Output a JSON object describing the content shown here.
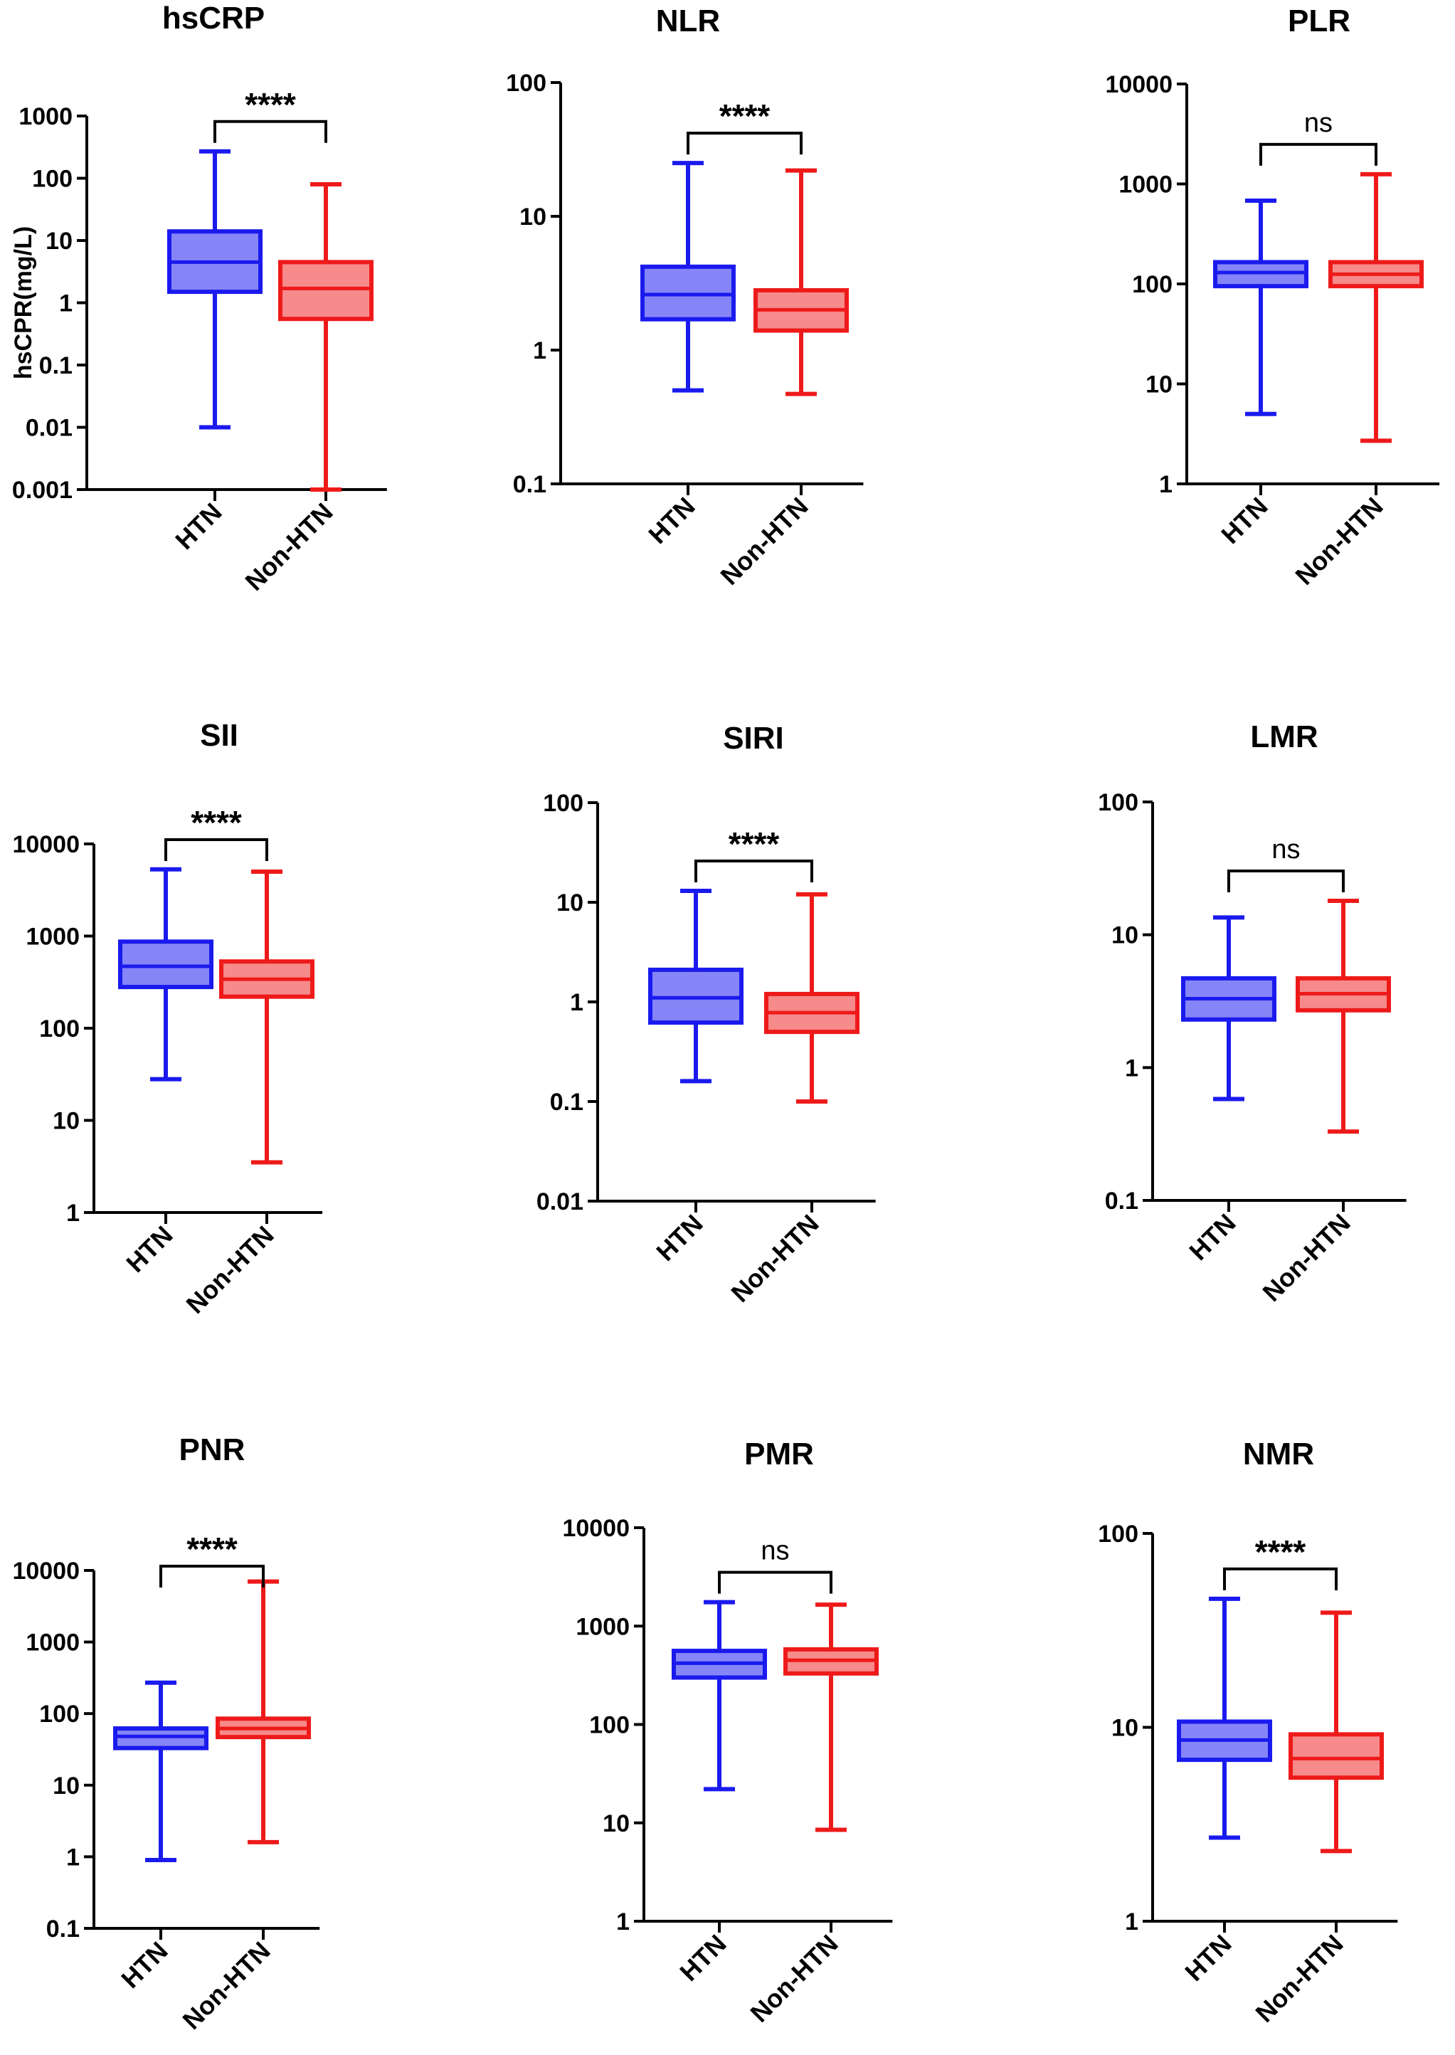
{
  "chart_data": [
    {
      "type": "boxplot",
      "title": "hsCRP",
      "ylabel": "hsCPR(mg/L)",
      "yscale": "log",
      "ylim": [
        0.001,
        1000
      ],
      "yticks": [
        "0.001",
        "0.01",
        "0.1",
        "1",
        "10",
        "100",
        "1000"
      ],
      "categories": [
        "HTN",
        "Non-HTN"
      ],
      "boxes": [
        {
          "name": "HTN",
          "min": 0.01,
          "q1": 1.5,
          "median": 4.5,
          "q3": 14,
          "max": 270,
          "color": "#1a1aee"
        },
        {
          "name": "Non-HTN",
          "min": 0.001,
          "q1": 0.55,
          "median": 1.7,
          "q3": 4.5,
          "max": 80,
          "color": "#ee1a1a"
        }
      ],
      "significance": "****"
    },
    {
      "type": "boxplot",
      "title": "NLR",
      "ylabel": "",
      "yscale": "log",
      "ylim": [
        0.1,
        100
      ],
      "yticks": [
        "0.1",
        "1",
        "10",
        "100"
      ],
      "categories": [
        "HTN",
        "Non-HTN"
      ],
      "boxes": [
        {
          "name": "HTN",
          "min": 0.5,
          "q1": 1.7,
          "median": 2.6,
          "q3": 4.2,
          "max": 25,
          "color": "#1a1aee"
        },
        {
          "name": "Non-HTN",
          "min": 0.47,
          "q1": 1.4,
          "median": 2.0,
          "q3": 2.8,
          "max": 22,
          "color": "#ee1a1a"
        }
      ],
      "significance": "****"
    },
    {
      "type": "boxplot",
      "title": "PLR",
      "ylabel": "",
      "yscale": "log",
      "ylim": [
        1,
        10000
      ],
      "yticks": [
        "1",
        "10",
        "100",
        "1000",
        "10000"
      ],
      "categories": [
        "HTN",
        "Non-HTN"
      ],
      "boxes": [
        {
          "name": "HTN",
          "min": 5,
          "q1": 95,
          "median": 130,
          "q3": 165,
          "max": 680,
          "color": "#1a1aee"
        },
        {
          "name": "Non-HTN",
          "min": 2.7,
          "q1": 95,
          "median": 125,
          "q3": 165,
          "max": 1250,
          "color": "#ee1a1a"
        }
      ],
      "significance": "ns"
    },
    {
      "type": "boxplot",
      "title": "SII",
      "ylabel": "",
      "yscale": "log",
      "ylim": [
        1,
        10000
      ],
      "yticks": [
        "1",
        "10",
        "100",
        "1000",
        "10000"
      ],
      "categories": [
        "HTN",
        "Non-HTN"
      ],
      "boxes": [
        {
          "name": "HTN",
          "min": 28,
          "q1": 280,
          "median": 470,
          "q3": 870,
          "max": 5300,
          "color": "#1a1aee"
        },
        {
          "name": "Non-HTN",
          "min": 3.5,
          "q1": 220,
          "median": 340,
          "q3": 530,
          "max": 5000,
          "color": "#ee1a1a"
        }
      ],
      "significance": "****"
    },
    {
      "type": "boxplot",
      "title": "SIRI",
      "ylabel": "",
      "yscale": "log",
      "ylim": [
        0.01,
        100
      ],
      "yticks": [
        "0.01",
        "0.1",
        "1",
        "10",
        "100"
      ],
      "categories": [
        "HTN",
        "Non-HTN"
      ],
      "boxes": [
        {
          "name": "HTN",
          "min": 0.16,
          "q1": 0.62,
          "median": 1.1,
          "q3": 2.1,
          "max": 13,
          "color": "#1a1aee"
        },
        {
          "name": "Non-HTN",
          "min": 0.1,
          "q1": 0.5,
          "median": 0.78,
          "q3": 1.2,
          "max": 12,
          "color": "#ee1a1a"
        }
      ],
      "significance": "****"
    },
    {
      "type": "boxplot",
      "title": "LMR",
      "ylabel": "",
      "yscale": "log",
      "ylim": [
        0.1,
        100
      ],
      "yticks": [
        "0.1",
        "1",
        "10",
        "100"
      ],
      "categories": [
        "HTN",
        "Non-HTN"
      ],
      "boxes": [
        {
          "name": "HTN",
          "min": 0.58,
          "q1": 2.3,
          "median": 3.3,
          "q3": 4.7,
          "max": 13.5,
          "color": "#1a1aee"
        },
        {
          "name": "Non-HTN",
          "min": 0.33,
          "q1": 2.7,
          "median": 3.6,
          "q3": 4.7,
          "max": 18,
          "color": "#ee1a1a"
        }
      ],
      "significance": "ns"
    },
    {
      "type": "boxplot",
      "title": "PNR",
      "ylabel": "",
      "yscale": "log",
      "ylim": [
        0.1,
        10000
      ],
      "yticks": [
        "0.1",
        "1",
        "10",
        "100",
        "1000",
        "10000"
      ],
      "categories": [
        "HTN",
        "Non-HTN"
      ],
      "boxes": [
        {
          "name": "HTN",
          "min": 0.9,
          "q1": 33,
          "median": 48,
          "q3": 62,
          "max": 270,
          "color": "#1a1aee"
        },
        {
          "name": "Non-HTN",
          "min": 1.6,
          "q1": 47,
          "median": 62,
          "q3": 85,
          "max": 7000,
          "color": "#ee1a1a"
        }
      ],
      "significance": "****"
    },
    {
      "type": "boxplot",
      "title": "PMR",
      "ylabel": "",
      "yscale": "log",
      "ylim": [
        1,
        10000
      ],
      "yticks": [
        "1",
        "10",
        "100",
        "1000",
        "10000"
      ],
      "categories": [
        "HTN",
        "Non-HTN"
      ],
      "boxes": [
        {
          "name": "HTN",
          "min": 22,
          "q1": 300,
          "median": 420,
          "q3": 560,
          "max": 1750,
          "color": "#1a1aee"
        },
        {
          "name": "Non-HTN",
          "min": 8.5,
          "q1": 330,
          "median": 450,
          "q3": 580,
          "max": 1650,
          "color": "#ee1a1a"
        }
      ],
      "significance": "ns"
    },
    {
      "type": "boxplot",
      "title": "NMR",
      "ylabel": "",
      "yscale": "log",
      "ylim": [
        1,
        100
      ],
      "yticks": [
        "1",
        "10",
        "100"
      ],
      "categories": [
        "HTN",
        "Non-HTN"
      ],
      "boxes": [
        {
          "name": "HTN",
          "min": 2.7,
          "q1": 6.8,
          "median": 8.6,
          "q3": 10.7,
          "max": 46,
          "color": "#1a1aee"
        },
        {
          "name": "Non-HTN",
          "min": 2.3,
          "q1": 5.5,
          "median": 6.9,
          "q3": 9.2,
          "max": 39,
          "color": "#ee1a1a"
        }
      ],
      "significance": "****"
    }
  ]
}
